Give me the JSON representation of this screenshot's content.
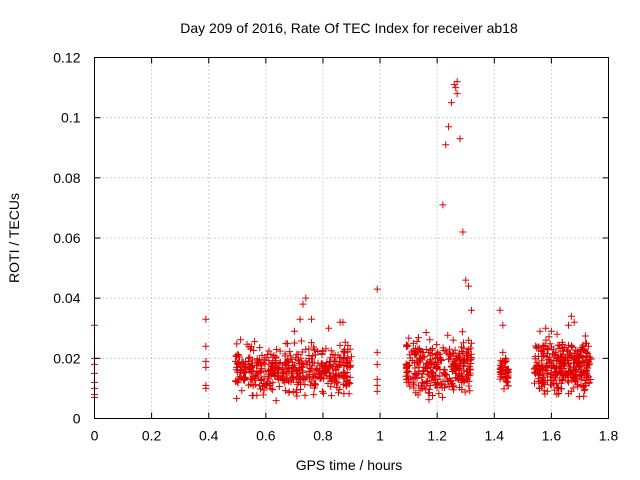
{
  "chart_data": {
    "type": "scatter",
    "title": "Day 209 of 2016, Rate Of TEC Index for receiver ab18",
    "xlabel": "GPS time / hours",
    "ylabel": "ROTI / TECUs",
    "xlim": [
      0,
      1.8
    ],
    "ylim": [
      0,
      0.12
    ],
    "x_ticks": [
      "0",
      "0.2",
      "0.4",
      "0.6",
      "0.8",
      "1",
      "1.2",
      "1.4",
      "1.6",
      "1.8"
    ],
    "y_ticks": [
      "0",
      "0.02",
      "0.04",
      "0.06",
      "0.08",
      "0.1",
      "0.12"
    ],
    "grid": true,
    "marker": "+",
    "colors": {
      "points": "#e00000"
    },
    "series": [
      {
        "name": "ROTI",
        "points": [
          [
            0.0,
            0.031
          ],
          [
            0.0,
            0.02
          ],
          [
            0.0,
            0.018
          ],
          [
            0.0,
            0.015
          ],
          [
            0.0,
            0.012
          ],
          [
            0.0,
            0.01
          ],
          [
            0.0,
            0.008
          ],
          [
            0.0,
            0.007
          ],
          [
            0.39,
            0.033
          ],
          [
            0.39,
            0.024
          ],
          [
            0.39,
            0.019
          ],
          [
            0.39,
            0.017
          ],
          [
            0.39,
            0.011
          ],
          [
            0.39,
            0.01
          ],
          [
            0.99,
            0.043
          ],
          [
            0.99,
            0.022
          ],
          [
            0.99,
            0.018
          ],
          [
            0.99,
            0.013
          ],
          [
            0.99,
            0.011
          ],
          [
            0.99,
            0.009
          ],
          [
            0.7,
            0.029
          ],
          [
            0.72,
            0.033
          ],
          [
            0.73,
            0.038
          ],
          [
            0.74,
            0.04
          ],
          [
            0.76,
            0.033
          ],
          [
            0.86,
            0.032
          ],
          [
            0.87,
            0.032
          ],
          [
            0.82,
            0.03
          ],
          [
            1.22,
            0.071
          ],
          [
            1.23,
            0.091
          ],
          [
            1.24,
            0.097
          ],
          [
            1.25,
            0.105
          ],
          [
            1.26,
            0.111
          ],
          [
            1.265,
            0.11
          ],
          [
            1.27,
            0.112
          ],
          [
            1.27,
            0.108
          ],
          [
            1.28,
            0.093
          ],
          [
            1.29,
            0.062
          ],
          [
            1.3,
            0.046
          ],
          [
            1.31,
            0.044
          ],
          [
            1.32,
            0.036
          ],
          [
            1.31,
            0.026
          ],
          [
            1.32,
            0.025
          ],
          [
            1.42,
            0.036
          ],
          [
            1.43,
            0.031
          ],
          [
            1.43,
            0.022
          ],
          [
            1.44,
            0.02
          ],
          [
            1.66,
            0.031
          ],
          [
            1.67,
            0.034
          ],
          [
            1.68,
            0.032
          ],
          [
            1.56,
            0.029
          ],
          [
            1.58,
            0.03
          ],
          [
            1.6,
            0.029
          ],
          [
            1.62,
            0.028
          ],
          [
            1.72,
            0.025
          ],
          [
            1.73,
            0.024
          ]
        ]
      }
    ],
    "clusters": [
      {
        "x": [
          0.49,
          0.9
        ],
        "y": [
          0.005,
          0.028
        ],
        "count": 460
      },
      {
        "x": [
          1.09,
          1.32
        ],
        "y": [
          0.004,
          0.03
        ],
        "count": 300
      },
      {
        "x": [
          1.42,
          1.45
        ],
        "y": [
          0.008,
          0.023
        ],
        "count": 50
      },
      {
        "x": [
          1.54,
          1.74
        ],
        "y": [
          0.005,
          0.03
        ],
        "count": 330
      }
    ]
  }
}
